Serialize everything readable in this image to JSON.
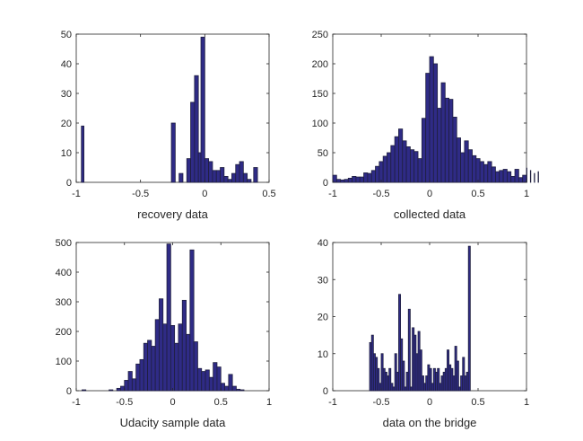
{
  "chart_data": [
    {
      "type": "bar",
      "name": "recovery",
      "xlabel": "recovery data",
      "xlim": [
        -1,
        0.5
      ],
      "ylim": [
        0,
        50
      ],
      "xticks": [
        -1,
        -0.5,
        0,
        0.5
      ],
      "xtick_labels": [
        "-1",
        "-0.5",
        "0",
        "0.5"
      ],
      "yticks": [
        0,
        10,
        20,
        30,
        40,
        50
      ],
      "ytick_labels": [
        "0",
        "10",
        "20",
        "30",
        "40",
        "50"
      ],
      "bins": [
        {
          "x0": -0.96,
          "x1": -0.94,
          "value": 19
        },
        {
          "x0": -0.26,
          "x1": -0.23,
          "value": 20
        },
        {
          "x0": -0.2,
          "x1": -0.17,
          "value": 3
        },
        {
          "x0": -0.14,
          "x1": -0.11,
          "value": 8
        },
        {
          "x0": -0.11,
          "x1": -0.08,
          "value": 27
        },
        {
          "x0": -0.08,
          "x1": -0.05,
          "value": 36
        },
        {
          "x0": -0.05,
          "x1": -0.03,
          "value": 10
        },
        {
          "x0": -0.03,
          "x1": 0.0,
          "value": 49
        },
        {
          "x0": 0.0,
          "x1": 0.03,
          "value": 8
        },
        {
          "x0": 0.03,
          "x1": 0.06,
          "value": 7
        },
        {
          "x0": 0.06,
          "x1": 0.09,
          "value": 4
        },
        {
          "x0": 0.09,
          "x1": 0.12,
          "value": 4
        },
        {
          "x0": 0.12,
          "x1": 0.15,
          "value": 5
        },
        {
          "x0": 0.15,
          "x1": 0.18,
          "value": 2
        },
        {
          "x0": 0.18,
          "x1": 0.21,
          "value": 1
        },
        {
          "x0": 0.21,
          "x1": 0.24,
          "value": 3
        },
        {
          "x0": 0.24,
          "x1": 0.27,
          "value": 6
        },
        {
          "x0": 0.27,
          "x1": 0.3,
          "value": 7
        },
        {
          "x0": 0.3,
          "x1": 0.33,
          "value": 3
        },
        {
          "x0": 0.33,
          "x1": 0.36,
          "value": 1
        },
        {
          "x0": 0.38,
          "x1": 0.41,
          "value": 5
        }
      ]
    },
    {
      "type": "bar",
      "name": "collected",
      "xlabel": "collected data",
      "xlim": [
        -1,
        1
      ],
      "ylim": [
        0,
        250
      ],
      "xticks": [
        -1,
        -0.5,
        0,
        0.5,
        1
      ],
      "xtick_labels": [
        "-1",
        "-0.5",
        "0",
        "0.5",
        "1"
      ],
      "yticks": [
        0,
        50,
        100,
        150,
        200,
        250
      ],
      "ytick_labels": [
        "0",
        "50",
        "100",
        "150",
        "200",
        "250"
      ],
      "bin_start": -1,
      "bin_width": 0.04,
      "values": [
        12,
        5,
        4,
        5,
        7,
        10,
        9,
        9,
        16,
        15,
        20,
        27,
        35,
        44,
        50,
        62,
        77,
        90,
        70,
        60,
        55,
        52,
        40,
        108,
        184,
        212,
        200,
        125,
        168,
        142,
        140,
        110,
        75,
        50,
        70,
        55,
        45,
        40,
        35,
        30,
        35,
        26,
        18,
        20,
        22,
        18,
        10,
        22,
        8,
        12,
        24,
        20,
        15,
        18
      ]
    },
    {
      "type": "bar",
      "name": "udacity",
      "xlabel": "Udacity sample data",
      "xlim": [
        -1,
        1
      ],
      "ylim": [
        0,
        500
      ],
      "xticks": [
        -1,
        -0.5,
        0,
        0.5,
        1
      ],
      "xtick_labels": [
        "-1",
        "-0.5",
        "0",
        "0.5",
        "1"
      ],
      "yticks": [
        0,
        100,
        200,
        300,
        400,
        500
      ],
      "ytick_labels": [
        "0",
        "100",
        "200",
        "300",
        "400",
        "500"
      ],
      "bins": [
        {
          "x0": -0.94,
          "x1": -0.9,
          "value": 3
        },
        {
          "x0": -0.66,
          "x1": -0.62,
          "value": 3
        },
        {
          "x0": -0.58,
          "x1": -0.54,
          "value": 8
        },
        {
          "x0": -0.54,
          "x1": -0.5,
          "value": 15
        },
        {
          "x0": -0.5,
          "x1": -0.46,
          "value": 35
        },
        {
          "x0": -0.46,
          "x1": -0.42,
          "value": 65
        },
        {
          "x0": -0.42,
          "x1": -0.38,
          "value": 40
        },
        {
          "x0": -0.38,
          "x1": -0.34,
          "value": 90
        },
        {
          "x0": -0.34,
          "x1": -0.3,
          "value": 105
        },
        {
          "x0": -0.3,
          "x1": -0.26,
          "value": 160
        },
        {
          "x0": -0.26,
          "x1": -0.22,
          "value": 170
        },
        {
          "x0": -0.22,
          "x1": -0.18,
          "value": 150
        },
        {
          "x0": -0.18,
          "x1": -0.14,
          "value": 240
        },
        {
          "x0": -0.14,
          "x1": -0.1,
          "value": 310
        },
        {
          "x0": -0.1,
          "x1": -0.06,
          "value": 225
        },
        {
          "x0": -0.06,
          "x1": -0.02,
          "value": 495
        },
        {
          "x0": -0.02,
          "x1": 0.02,
          "value": 220
        },
        {
          "x0": 0.02,
          "x1": 0.06,
          "value": 160
        },
        {
          "x0": 0.06,
          "x1": 0.1,
          "value": 225
        },
        {
          "x0": 0.1,
          "x1": 0.14,
          "value": 305
        },
        {
          "x0": 0.14,
          "x1": 0.18,
          "value": 190
        },
        {
          "x0": 0.18,
          "x1": 0.22,
          "value": 475
        },
        {
          "x0": 0.22,
          "x1": 0.26,
          "value": 165
        },
        {
          "x0": 0.26,
          "x1": 0.3,
          "value": 75
        },
        {
          "x0": 0.3,
          "x1": 0.34,
          "value": 65
        },
        {
          "x0": 0.34,
          "x1": 0.38,
          "value": 70
        },
        {
          "x0": 0.38,
          "x1": 0.42,
          "value": 45
        },
        {
          "x0": 0.42,
          "x1": 0.46,
          "value": 95
        },
        {
          "x0": 0.46,
          "x1": 0.5,
          "value": 80
        },
        {
          "x0": 0.5,
          "x1": 0.54,
          "value": 25
        },
        {
          "x0": 0.54,
          "x1": 0.58,
          "value": 15
        },
        {
          "x0": 0.58,
          "x1": 0.62,
          "value": 55
        },
        {
          "x0": 0.62,
          "x1": 0.66,
          "value": 15
        },
        {
          "x0": 0.66,
          "x1": 0.7,
          "value": 5
        },
        {
          "x0": 0.7,
          "x1": 0.74,
          "value": 3
        }
      ]
    },
    {
      "type": "bar",
      "name": "bridge",
      "xlabel": "data on the bridge",
      "xlim": [
        -1,
        1
      ],
      "ylim": [
        0,
        40
      ],
      "xticks": [
        -1,
        -0.5,
        0,
        0.5,
        1
      ],
      "xtick_labels": [
        "-1",
        "-0.5",
        "0",
        "0.5",
        "1"
      ],
      "yticks": [
        0,
        10,
        20,
        30,
        40
      ],
      "ytick_labels": [
        "0",
        "10",
        "20",
        "30",
        "40"
      ],
      "bin_start": -0.62,
      "bin_width": 0.02,
      "values": [
        13,
        15,
        10,
        9,
        6,
        2,
        10,
        6,
        5,
        4,
        6,
        2,
        1,
        10,
        5,
        26,
        14,
        8,
        1,
        5,
        22,
        1,
        17,
        15,
        10,
        16,
        11,
        4,
        2,
        4,
        7,
        6,
        2,
        6,
        5,
        6,
        2,
        4,
        5,
        6,
        11,
        7,
        6,
        4,
        12,
        8,
        1,
        4,
        9,
        4,
        5,
        39
      ]
    }
  ]
}
